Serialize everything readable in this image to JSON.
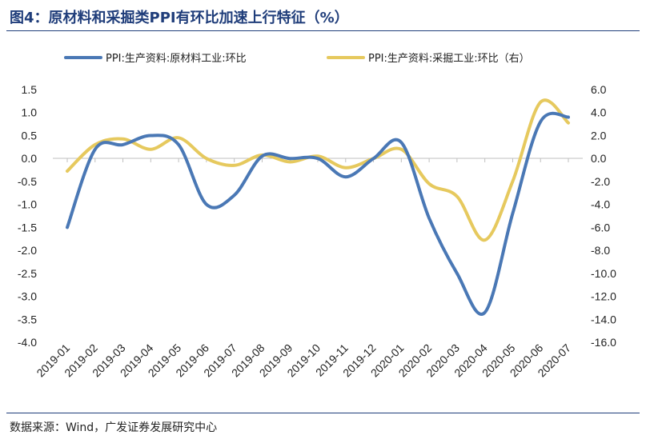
{
  "title": "图4：原材料和采掘类PPI有环比加速上行特征（%）",
  "source": "数据来源：Wind，广发证券发展研究中心",
  "colors": {
    "series1": "#4a78b5",
    "series2": "#e6c95e",
    "title": "#1f3d7a"
  },
  "chart_data": {
    "type": "line",
    "categories": [
      "2019-01",
      "2019-02",
      "2019-03",
      "2019-04",
      "2019-05",
      "2019-06",
      "2019-07",
      "2019-08",
      "2019-09",
      "2019-10",
      "2019-11",
      "2019-12",
      "2020-01",
      "2020-02",
      "2020-03",
      "2020-04",
      "2020-05",
      "2020-06",
      "2020-07"
    ],
    "series": [
      {
        "name": "PPI:生产资料:原材料工业:环比",
        "axis": "left",
        "values": [
          -1.5,
          0.2,
          0.3,
          0.5,
          0.3,
          -1.0,
          -0.8,
          0.05,
          0.0,
          0.0,
          -0.4,
          0.0,
          0.35,
          -1.3,
          -2.5,
          -3.35,
          -1.2,
          0.8,
          0.9
        ]
      },
      {
        "name": "PPI:生产资料:采掘工业:环比（右）",
        "axis": "right",
        "values": [
          -1.1,
          1.2,
          1.7,
          0.8,
          1.8,
          0.0,
          -0.6,
          0.3,
          -0.3,
          0.2,
          -0.8,
          0.0,
          0.8,
          -2.2,
          -3.3,
          -7.1,
          -2.0,
          4.9,
          3.1
        ]
      }
    ],
    "y_left": {
      "min": -4.0,
      "max": 1.5,
      "ticks": [
        "1.5",
        "1.0",
        "0.5",
        "0.0",
        "-0.5",
        "-1.0",
        "-1.5",
        "-2.0",
        "-2.5",
        "-3.0",
        "-3.5",
        "-4.0"
      ]
    },
    "y_right": {
      "min": -16.0,
      "max": 6.0,
      "ticks": [
        "6.0",
        "4.0",
        "2.0",
        "0.0",
        "-2.0",
        "-4.0",
        "-6.0",
        "-8.0",
        "-10.0",
        "-12.0",
        "-14.0",
        "-16.0"
      ]
    },
    "legend": "top",
    "grid": false
  }
}
